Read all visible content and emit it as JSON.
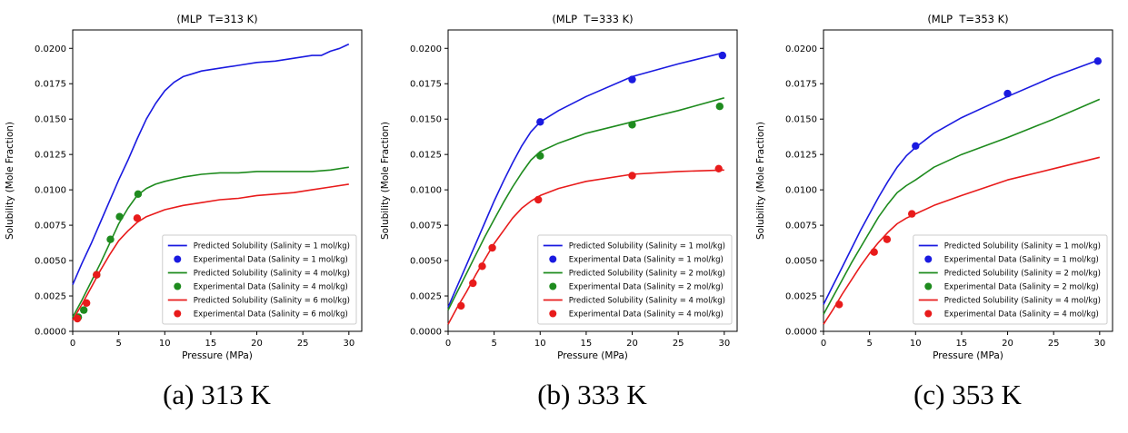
{
  "figure": {
    "captions": [
      "(a) 313 K",
      "(b) 333 K",
      "(c) 353 K"
    ]
  },
  "colors": {
    "blue": "#1a1ae0",
    "green": "#1e8b1e",
    "red": "#e81b1b",
    "text": "#000000",
    "legend_border": "#cccccc",
    "legend_bg": "#ffffff"
  },
  "chart_data": [
    {
      "type": "line",
      "title": "(MLP  T=313 K)",
      "xlabel": "Pressure (MPa)",
      "ylabel": "Solubility (Mole Fraction)",
      "xlim": [
        0,
        31.4
      ],
      "ylim": [
        0,
        0.0213
      ],
      "xticks": [
        0,
        5,
        10,
        15,
        20,
        25,
        30
      ],
      "yticks": [
        0.0,
        0.0025,
        0.005,
        0.0075,
        0.01,
        0.0125,
        0.015,
        0.0175,
        0.02
      ],
      "grid": false,
      "legend_position": "lower right",
      "series": [
        {
          "name": "Predicted Solubility (Salinity = 1 mol/kg)",
          "kind": "line",
          "color": "blue",
          "x": [
            0,
            1,
            2,
            3,
            4,
            5,
            6,
            7,
            8,
            9,
            10,
            11,
            12,
            13,
            14,
            16,
            18,
            20,
            22,
            24,
            26,
            27,
            28,
            29,
            30
          ],
          "y": [
            0.0033,
            0.0048,
            0.0062,
            0.0077,
            0.0092,
            0.0107,
            0.0121,
            0.0136,
            0.015,
            0.0161,
            0.017,
            0.0176,
            0.018,
            0.0182,
            0.0184,
            0.0186,
            0.0188,
            0.019,
            0.0191,
            0.0193,
            0.0195,
            0.0195,
            0.0198,
            0.02,
            0.0203
          ]
        },
        {
          "name": "Experimental Data (Salinity = 1 mol/kg)",
          "kind": "scatter",
          "color": "blue",
          "x": [],
          "y": []
        },
        {
          "name": "Predicted Solubility (Salinity = 4 mol/kg)",
          "kind": "line",
          "color": "green",
          "x": [
            0,
            1,
            2,
            3,
            4,
            5,
            6,
            7,
            8,
            9,
            10,
            12,
            14,
            16,
            18,
            20,
            22,
            24,
            26,
            28,
            30
          ],
          "y": [
            0.001,
            0.0022,
            0.0035,
            0.0048,
            0.0062,
            0.0076,
            0.0087,
            0.0096,
            0.0101,
            0.0104,
            0.0106,
            0.0109,
            0.0111,
            0.0112,
            0.0112,
            0.0113,
            0.0113,
            0.0113,
            0.0113,
            0.0114,
            0.0116
          ]
        },
        {
          "name": "Experimental Data (Salinity = 4 mol/kg)",
          "kind": "scatter",
          "color": "green",
          "x": [
            0.6,
            1.2,
            2.6,
            4.1,
            5.1,
            7.1
          ],
          "y": [
            0.001,
            0.0015,
            0.004,
            0.0065,
            0.0081,
            0.0097
          ]
        },
        {
          "name": "Predicted Solubility (Salinity = 6 mol/kg)",
          "kind": "line",
          "color": "red",
          "x": [
            0,
            1,
            2,
            3,
            4,
            5,
            6,
            7,
            8,
            10,
            12,
            14,
            16,
            18,
            20,
            22,
            24,
            26,
            28,
            30
          ],
          "y": [
            0.0008,
            0.0019,
            0.0031,
            0.0043,
            0.0054,
            0.0064,
            0.0071,
            0.0077,
            0.0081,
            0.0086,
            0.0089,
            0.0091,
            0.0093,
            0.0094,
            0.0096,
            0.0097,
            0.0098,
            0.01,
            0.0102,
            0.0104
          ]
        },
        {
          "name": "Experimental Data (Salinity = 6 mol/kg)",
          "kind": "scatter",
          "color": "red",
          "x": [
            0.5,
            1.5,
            2.6,
            7.0
          ],
          "y": [
            0.0009,
            0.002,
            0.004,
            0.008
          ]
        }
      ]
    },
    {
      "type": "line",
      "title": "(MLP  T=333 K)",
      "xlabel": "Pressure (MPa)",
      "ylabel": "Solubility (Mole Fraction)",
      "xlim": [
        0,
        31.4
      ],
      "ylim": [
        0,
        0.0213
      ],
      "xticks": [
        0,
        5,
        10,
        15,
        20,
        25,
        30
      ],
      "yticks": [
        0.0,
        0.0025,
        0.005,
        0.0075,
        0.01,
        0.0125,
        0.015,
        0.0175,
        0.02
      ],
      "grid": false,
      "legend_position": "lower right",
      "series": [
        {
          "name": "Predicted Solubility (Salinity = 1 mol/kg)",
          "kind": "line",
          "color": "blue",
          "x": [
            0,
            1,
            2,
            3,
            4,
            5,
            6,
            7,
            8,
            9,
            10,
            12,
            15,
            20,
            25,
            30
          ],
          "y": [
            0.0017,
            0.0032,
            0.0047,
            0.0062,
            0.0077,
            0.0092,
            0.0106,
            0.0119,
            0.0131,
            0.0141,
            0.0148,
            0.0156,
            0.0166,
            0.018,
            0.0189,
            0.0197
          ]
        },
        {
          "name": "Experimental Data (Salinity = 1 mol/kg)",
          "kind": "scatter",
          "color": "blue",
          "x": [
            10,
            20,
            29.8
          ],
          "y": [
            0.0148,
            0.0178,
            0.0195
          ]
        },
        {
          "name": "Predicted Solubility (Salinity = 2 mol/kg)",
          "kind": "line",
          "color": "green",
          "x": [
            0,
            1,
            2,
            3,
            4,
            5,
            6,
            7,
            8,
            9,
            10,
            12,
            15,
            20,
            25,
            30
          ],
          "y": [
            0.0015,
            0.0028,
            0.0041,
            0.0054,
            0.0067,
            0.0079,
            0.0091,
            0.0102,
            0.0112,
            0.0121,
            0.0127,
            0.0133,
            0.014,
            0.0148,
            0.0156,
            0.0165
          ]
        },
        {
          "name": "Experimental Data (Salinity = 2 mol/kg)",
          "kind": "scatter",
          "color": "green",
          "x": [
            10,
            20,
            29.5
          ],
          "y": [
            0.0124,
            0.0146,
            0.0159
          ]
        },
        {
          "name": "Predicted Solubility (Salinity = 4 mol/kg)",
          "kind": "line",
          "color": "red",
          "x": [
            0,
            1,
            2,
            3,
            4,
            5,
            6,
            7,
            8,
            9,
            10,
            12,
            15,
            20,
            25,
            30
          ],
          "y": [
            0.0005,
            0.0017,
            0.0028,
            0.004,
            0.0051,
            0.0062,
            0.0071,
            0.008,
            0.0087,
            0.0092,
            0.0096,
            0.0101,
            0.0106,
            0.0111,
            0.0113,
            0.0114
          ]
        },
        {
          "name": "Experimental Data (Salinity = 4 mol/kg)",
          "kind": "scatter",
          "color": "red",
          "x": [
            1.4,
            2.7,
            3.7,
            4.8,
            9.8,
            20,
            29.4
          ],
          "y": [
            0.0018,
            0.0034,
            0.0046,
            0.0059,
            0.0093,
            0.011,
            0.0115
          ]
        }
      ]
    },
    {
      "type": "line",
      "title": "(MLP  T=353 K)",
      "xlabel": "Pressure (MPa)",
      "ylabel": "Solubility (Mole Fraction)",
      "xlim": [
        0,
        31.4
      ],
      "ylim": [
        0,
        0.0213
      ],
      "xticks": [
        0,
        5,
        10,
        15,
        20,
        25,
        30
      ],
      "yticks": [
        0.0,
        0.0025,
        0.005,
        0.0075,
        0.01,
        0.0125,
        0.015,
        0.0175,
        0.02
      ],
      "grid": false,
      "legend_position": "lower right",
      "series": [
        {
          "name": "Predicted Solubility (Salinity = 1 mol/kg)",
          "kind": "line",
          "color": "blue",
          "x": [
            0,
            1,
            2,
            3,
            4,
            5,
            6,
            7,
            8,
            9,
            10,
            12,
            15,
            20,
            25,
            30
          ],
          "y": [
            0.0019,
            0.0032,
            0.0045,
            0.0058,
            0.0071,
            0.0083,
            0.0095,
            0.0106,
            0.0116,
            0.0124,
            0.013,
            0.014,
            0.0151,
            0.0166,
            0.018,
            0.0192
          ]
        },
        {
          "name": "Experimental Data (Salinity = 1 mol/kg)",
          "kind": "scatter",
          "color": "blue",
          "x": [
            10,
            20,
            29.8
          ],
          "y": [
            0.0131,
            0.0168,
            0.0191
          ]
        },
        {
          "name": "Predicted Solubility (Salinity = 2 mol/kg)",
          "kind": "line",
          "color": "green",
          "x": [
            0,
            1,
            2,
            3,
            4,
            5,
            6,
            7,
            8,
            9,
            10,
            12,
            15,
            20,
            25,
            30
          ],
          "y": [
            0.0012,
            0.0024,
            0.0036,
            0.0048,
            0.0059,
            0.007,
            0.0081,
            0.009,
            0.0098,
            0.0103,
            0.0107,
            0.0116,
            0.0125,
            0.0137,
            0.015,
            0.0164
          ]
        },
        {
          "name": "Experimental Data (Salinity = 2 mol/kg)",
          "kind": "scatter",
          "color": "green",
          "x": [],
          "y": []
        },
        {
          "name": "Predicted Solubility (Salinity = 4 mol/kg)",
          "kind": "line",
          "color": "red",
          "x": [
            0,
            1,
            2,
            3,
            4,
            5,
            6,
            7,
            8,
            9,
            10,
            12,
            15,
            20,
            25,
            30
          ],
          "y": [
            0.0005,
            0.0015,
            0.0026,
            0.0036,
            0.0046,
            0.0055,
            0.0063,
            0.007,
            0.0076,
            0.008,
            0.0083,
            0.0089,
            0.0096,
            0.0107,
            0.0115,
            0.0123
          ]
        },
        {
          "name": "Experimental Data (Salinity = 4 mol/kg)",
          "kind": "scatter",
          "color": "red",
          "x": [
            1.7,
            5.5,
            6.9,
            9.6
          ],
          "y": [
            0.0019,
            0.0056,
            0.0065,
            0.0083
          ]
        }
      ]
    }
  ]
}
